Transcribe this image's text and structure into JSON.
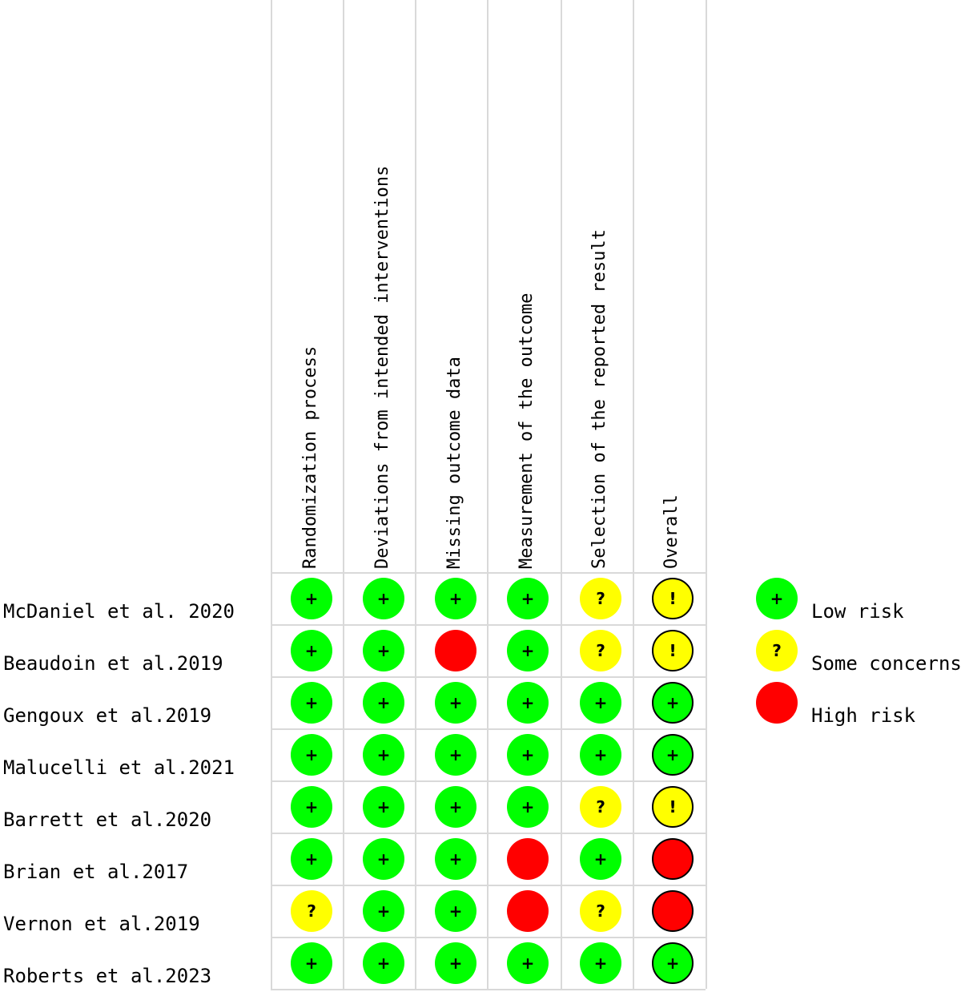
{
  "chart_data": {
    "type": "table",
    "domains": [
      "Randomization process",
      "Deviations from intended interventions",
      "Missing outcome data",
      "Measurement of the outcome",
      "Selection of the reported result",
      "Overall"
    ],
    "studies": [
      {
        "name": "McDaniel et al. 2020",
        "ratings": [
          "low",
          "low",
          "low",
          "low",
          "some",
          "some"
        ]
      },
      {
        "name": "Beaudoin et al.2019",
        "ratings": [
          "low",
          "low",
          "high",
          "low",
          "some",
          "some"
        ]
      },
      {
        "name": "Gengoux et al.2019",
        "ratings": [
          "low",
          "low",
          "low",
          "low",
          "low",
          "low"
        ]
      },
      {
        "name": "Malucelli et al.2021",
        "ratings": [
          "low",
          "low",
          "low",
          "low",
          "low",
          "low"
        ]
      },
      {
        "name": "Barrett et al.2020",
        "ratings": [
          "low",
          "low",
          "low",
          "low",
          "some",
          "some"
        ]
      },
      {
        "name": "Brian et al.2017",
        "ratings": [
          "low",
          "low",
          "low",
          "high",
          "low",
          "high"
        ]
      },
      {
        "name": "Vernon et al.2019",
        "ratings": [
          "some",
          "low",
          "low",
          "high",
          "some",
          "high"
        ]
      },
      {
        "name": "Roberts et al.2023",
        "ratings": [
          "low",
          "low",
          "low",
          "low",
          "low",
          "low"
        ]
      }
    ],
    "legend": [
      {
        "key": "low",
        "label": "Low risk",
        "symbol": "+"
      },
      {
        "key": "some",
        "label": "Some concerns",
        "symbol": "?"
      },
      {
        "key": "high",
        "label": "High risk",
        "symbol": ""
      }
    ],
    "overall_some_symbol": "!",
    "colors": {
      "low": "#00ff00",
      "some": "#ffff00",
      "high": "#ff0000",
      "grid": "#d9d9d9"
    }
  }
}
